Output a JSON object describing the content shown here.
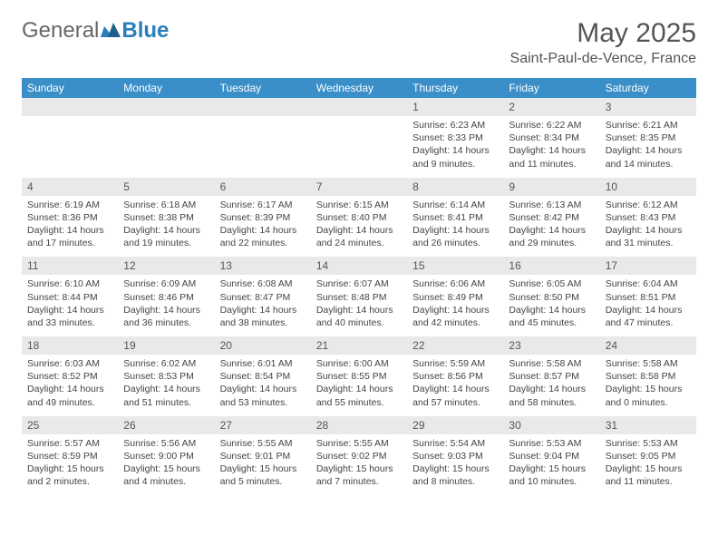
{
  "logo": {
    "text_general": "General",
    "text_blue": "Blue"
  },
  "title": "May 2025",
  "location": "Saint-Paul-de-Vence, France",
  "colors": {
    "header_bg": "#3a8fc8",
    "header_text": "#ffffff",
    "daynum_bg": "#e9e9e9",
    "text": "#444444",
    "border": "#dcdcdc"
  },
  "day_headers": [
    "Sunday",
    "Monday",
    "Tuesday",
    "Wednesday",
    "Thursday",
    "Friday",
    "Saturday"
  ],
  "weeks": [
    {
      "nums": [
        "",
        "",
        "",
        "",
        "1",
        "2",
        "3"
      ],
      "cells": [
        null,
        null,
        null,
        null,
        {
          "sunrise": "6:23 AM",
          "sunset": "8:33 PM",
          "daylight": "14 hours and 9 minutes."
        },
        {
          "sunrise": "6:22 AM",
          "sunset": "8:34 PM",
          "daylight": "14 hours and 11 minutes."
        },
        {
          "sunrise": "6:21 AM",
          "sunset": "8:35 PM",
          "daylight": "14 hours and 14 minutes."
        }
      ]
    },
    {
      "nums": [
        "4",
        "5",
        "6",
        "7",
        "8",
        "9",
        "10"
      ],
      "cells": [
        {
          "sunrise": "6:19 AM",
          "sunset": "8:36 PM",
          "daylight": "14 hours and 17 minutes."
        },
        {
          "sunrise": "6:18 AM",
          "sunset": "8:38 PM",
          "daylight": "14 hours and 19 minutes."
        },
        {
          "sunrise": "6:17 AM",
          "sunset": "8:39 PM",
          "daylight": "14 hours and 22 minutes."
        },
        {
          "sunrise": "6:15 AM",
          "sunset": "8:40 PM",
          "daylight": "14 hours and 24 minutes."
        },
        {
          "sunrise": "6:14 AM",
          "sunset": "8:41 PM",
          "daylight": "14 hours and 26 minutes."
        },
        {
          "sunrise": "6:13 AM",
          "sunset": "8:42 PM",
          "daylight": "14 hours and 29 minutes."
        },
        {
          "sunrise": "6:12 AM",
          "sunset": "8:43 PM",
          "daylight": "14 hours and 31 minutes."
        }
      ]
    },
    {
      "nums": [
        "11",
        "12",
        "13",
        "14",
        "15",
        "16",
        "17"
      ],
      "cells": [
        {
          "sunrise": "6:10 AM",
          "sunset": "8:44 PM",
          "daylight": "14 hours and 33 minutes."
        },
        {
          "sunrise": "6:09 AM",
          "sunset": "8:46 PM",
          "daylight": "14 hours and 36 minutes."
        },
        {
          "sunrise": "6:08 AM",
          "sunset": "8:47 PM",
          "daylight": "14 hours and 38 minutes."
        },
        {
          "sunrise": "6:07 AM",
          "sunset": "8:48 PM",
          "daylight": "14 hours and 40 minutes."
        },
        {
          "sunrise": "6:06 AM",
          "sunset": "8:49 PM",
          "daylight": "14 hours and 42 minutes."
        },
        {
          "sunrise": "6:05 AM",
          "sunset": "8:50 PM",
          "daylight": "14 hours and 45 minutes."
        },
        {
          "sunrise": "6:04 AM",
          "sunset": "8:51 PM",
          "daylight": "14 hours and 47 minutes."
        }
      ]
    },
    {
      "nums": [
        "18",
        "19",
        "20",
        "21",
        "22",
        "23",
        "24"
      ],
      "cells": [
        {
          "sunrise": "6:03 AM",
          "sunset": "8:52 PM",
          "daylight": "14 hours and 49 minutes."
        },
        {
          "sunrise": "6:02 AM",
          "sunset": "8:53 PM",
          "daylight": "14 hours and 51 minutes."
        },
        {
          "sunrise": "6:01 AM",
          "sunset": "8:54 PM",
          "daylight": "14 hours and 53 minutes."
        },
        {
          "sunrise": "6:00 AM",
          "sunset": "8:55 PM",
          "daylight": "14 hours and 55 minutes."
        },
        {
          "sunrise": "5:59 AM",
          "sunset": "8:56 PM",
          "daylight": "14 hours and 57 minutes."
        },
        {
          "sunrise": "5:58 AM",
          "sunset": "8:57 PM",
          "daylight": "14 hours and 58 minutes."
        },
        {
          "sunrise": "5:58 AM",
          "sunset": "8:58 PM",
          "daylight": "15 hours and 0 minutes."
        }
      ]
    },
    {
      "nums": [
        "25",
        "26",
        "27",
        "28",
        "29",
        "30",
        "31"
      ],
      "cells": [
        {
          "sunrise": "5:57 AM",
          "sunset": "8:59 PM",
          "daylight": "15 hours and 2 minutes."
        },
        {
          "sunrise": "5:56 AM",
          "sunset": "9:00 PM",
          "daylight": "15 hours and 4 minutes."
        },
        {
          "sunrise": "5:55 AM",
          "sunset": "9:01 PM",
          "daylight": "15 hours and 5 minutes."
        },
        {
          "sunrise": "5:55 AM",
          "sunset": "9:02 PM",
          "daylight": "15 hours and 7 minutes."
        },
        {
          "sunrise": "5:54 AM",
          "sunset": "9:03 PM",
          "daylight": "15 hours and 8 minutes."
        },
        {
          "sunrise": "5:53 AM",
          "sunset": "9:04 PM",
          "daylight": "15 hours and 10 minutes."
        },
        {
          "sunrise": "5:53 AM",
          "sunset": "9:05 PM",
          "daylight": "15 hours and 11 minutes."
        }
      ]
    }
  ]
}
